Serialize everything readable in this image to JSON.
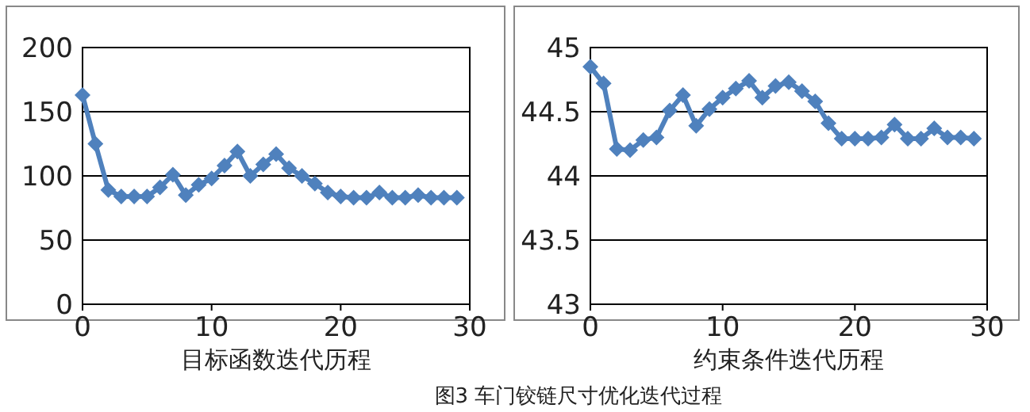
{
  "chart_data": [
    {
      "type": "line",
      "xlabel": "目标函数迭代历程",
      "x": [
        0,
        1,
        2,
        3,
        4,
        5,
        6,
        7,
        8,
        9,
        10,
        11,
        12,
        13,
        14,
        15,
        16,
        17,
        18,
        19,
        20,
        21,
        22,
        23,
        24,
        25,
        26,
        27,
        28,
        29
      ],
      "values": [
        163,
        125,
        89,
        84,
        84,
        84,
        91,
        101,
        85,
        93,
        98,
        108,
        119,
        100,
        109,
        117,
        106,
        100,
        94,
        87,
        84,
        83,
        83,
        87,
        83,
        83,
        85,
        83,
        83,
        83
      ],
      "color": "#4f81bd",
      "marker": "diamond",
      "grid": "y",
      "xlim": [
        0,
        30
      ],
      "xticks": [
        0,
        10,
        20,
        30
      ],
      "ylim": [
        0,
        200
      ],
      "yticks": [
        0,
        50,
        100,
        150,
        200
      ]
    },
    {
      "type": "line",
      "xlabel": "约束条件迭代历程",
      "x": [
        0,
        1,
        2,
        3,
        4,
        5,
        6,
        7,
        8,
        9,
        10,
        11,
        12,
        13,
        14,
        15,
        16,
        17,
        18,
        19,
        20,
        21,
        22,
        23,
        24,
        25,
        26,
        27,
        28,
        29
      ],
      "values": [
        44.85,
        44.72,
        44.21,
        44.2,
        44.28,
        44.3,
        44.51,
        44.63,
        44.39,
        44.52,
        44.61,
        44.68,
        44.74,
        44.61,
        44.7,
        44.73,
        44.66,
        44.58,
        44.41,
        44.29,
        44.29,
        44.29,
        44.3,
        44.4,
        44.29,
        44.29,
        44.37,
        44.3,
        44.3,
        44.29
      ],
      "color": "#4f81bd",
      "marker": "diamond",
      "grid": "y",
      "xlim": [
        0,
        30
      ],
      "xticks": [
        0,
        10,
        20,
        30
      ],
      "ylim": [
        43,
        45
      ],
      "yticks": [
        43,
        43.5,
        44,
        44.5,
        45
      ],
      "annotations": [
        "图3 车门铰链尺寸优化迭代过程"
      ]
    }
  ]
}
